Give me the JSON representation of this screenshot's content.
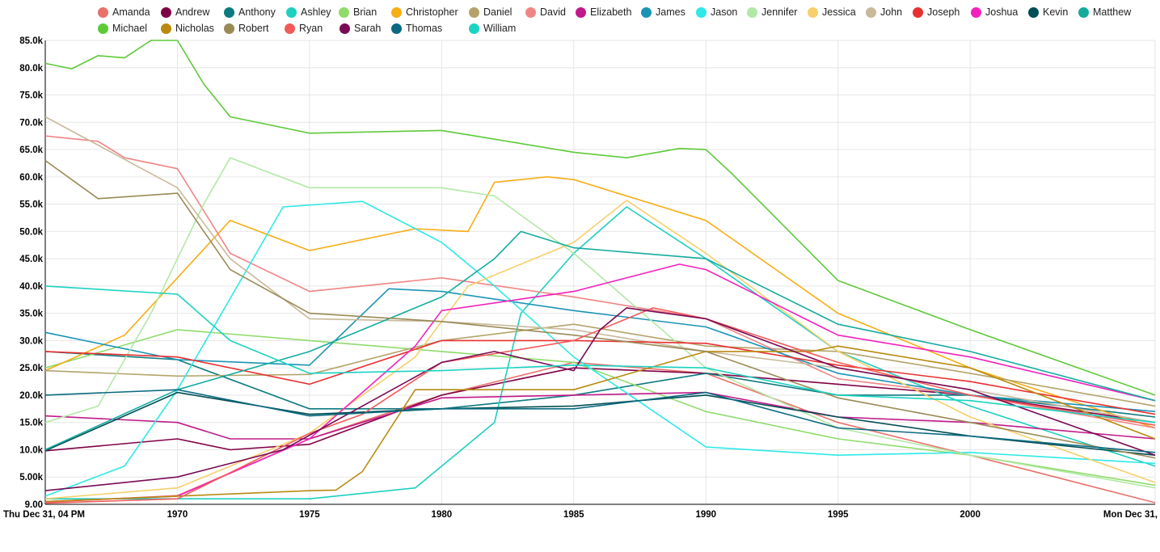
{
  "chart_data": {
    "type": "line",
    "y_tick_labels": [
      "9.00",
      "5.00k",
      "10.0k",
      "15.0k",
      "20.0k",
      "25.0k",
      "30.0k",
      "35.0k",
      "40.0k",
      "45.0k",
      "50.0k",
      "55.0k",
      "60.0k",
      "65.0k",
      "70.0k",
      "75.0k",
      "80.0k",
      "85.0k"
    ],
    "x_tick_labels": [
      "Thu Dec 31, 04 PM",
      "1970",
      "1975",
      "1980",
      "1985",
      "1990",
      "1995",
      "2000",
      "Mon Dec 31,"
    ],
    "x_tick_years": [
      1965,
      1970,
      1975,
      1980,
      1985,
      1990,
      1995,
      2000,
      2007
    ],
    "x_range": [
      1965,
      2007
    ],
    "ylim": [
      0,
      85000
    ],
    "grid": true,
    "legend_position": "top",
    "series": [
      {
        "name": "Amanda",
        "color": "#e8716b",
        "points": [
          [
            1965,
            400
          ],
          [
            1970,
            1600
          ],
          [
            1975,
            12000
          ],
          [
            1980,
            20000
          ],
          [
            1985,
            26000
          ],
          [
            1990,
            24000
          ],
          [
            1995,
            15000
          ],
          [
            2000,
            9000
          ],
          [
            2007,
            300
          ]
        ]
      },
      {
        "name": "Andrew",
        "color": "#800046",
        "points": [
          [
            1965,
            9800
          ],
          [
            1970,
            12000
          ],
          [
            1972,
            10000
          ],
          [
            1975,
            11000
          ],
          [
            1980,
            20000
          ],
          [
            1985,
            25000
          ],
          [
            1990,
            24000
          ],
          [
            1995,
            22000
          ],
          [
            2000,
            20000
          ],
          [
            2007,
            15000
          ]
        ]
      },
      {
        "name": "Anthony",
        "color": "#0d7a80",
        "points": [
          [
            1965,
            28000
          ],
          [
            1970,
            26500
          ],
          [
            1975,
            17500
          ],
          [
            1980,
            17500
          ],
          [
            1985,
            20000
          ],
          [
            1990,
            24000
          ],
          [
            1995,
            20000
          ],
          [
            2000,
            20000
          ],
          [
            2007,
            16000
          ]
        ]
      },
      {
        "name": "Ashley",
        "color": "#1fcfc0",
        "points": [
          [
            1965,
            1000
          ],
          [
            1975,
            1000
          ],
          [
            1979,
            3000
          ],
          [
            1982,
            15000
          ],
          [
            1983,
            35000
          ],
          [
            1985,
            46000
          ],
          [
            1987,
            54500
          ],
          [
            1990,
            45000
          ],
          [
            1995,
            28000
          ],
          [
            2000,
            18000
          ],
          [
            2007,
            7000
          ]
        ]
      },
      {
        "name": "Brian",
        "color": "#8fdb6b",
        "points": [
          [
            1965,
            25000
          ],
          [
            1970,
            32000
          ],
          [
            1975,
            30000
          ],
          [
            1980,
            28000
          ],
          [
            1985,
            26000
          ],
          [
            1990,
            17000
          ],
          [
            1995,
            12000
          ],
          [
            2000,
            9000
          ],
          [
            2007,
            3500
          ]
        ]
      },
      {
        "name": "Christopher",
        "color": "#f7ad14",
        "points": [
          [
            1965,
            24500
          ],
          [
            1968,
            31000
          ],
          [
            1972,
            52000
          ],
          [
            1975,
            46500
          ],
          [
            1979,
            50500
          ],
          [
            1981,
            50000
          ],
          [
            1982,
            59000
          ],
          [
            1984,
            60000
          ],
          [
            1985,
            59500
          ],
          [
            1990,
            52000
          ],
          [
            1995,
            35000
          ],
          [
            2000,
            25000
          ],
          [
            2007,
            14000
          ]
        ]
      },
      {
        "name": "Daniel",
        "color": "#b3a36a",
        "points": [
          [
            1965,
            24500
          ],
          [
            1970,
            23500
          ],
          [
            1975,
            23800
          ],
          [
            1980,
            30000
          ],
          [
            1985,
            33000
          ],
          [
            1990,
            29000
          ],
          [
            1995,
            28000
          ],
          [
            2000,
            24000
          ],
          [
            2007,
            18000
          ]
        ]
      },
      {
        "name": "David",
        "color": "#f08585",
        "points": [
          [
            1965,
            67500
          ],
          [
            1967,
            66500
          ],
          [
            1968,
            63500
          ],
          [
            1970,
            61500
          ],
          [
            1972,
            46000
          ],
          [
            1975,
            39000
          ],
          [
            1980,
            41500
          ],
          [
            1985,
            38000
          ],
          [
            1990,
            34000
          ],
          [
            1995,
            23000
          ],
          [
            2000,
            20000
          ],
          [
            2007,
            14000
          ]
        ]
      },
      {
        "name": "Elizabeth",
        "color": "#c01a8a",
        "points": [
          [
            1965,
            16200
          ],
          [
            1970,
            15000
          ],
          [
            1972,
            12000
          ],
          [
            1975,
            12000
          ],
          [
            1980,
            19500
          ],
          [
            1985,
            20000
          ],
          [
            1990,
            20500
          ],
          [
            1995,
            16000
          ],
          [
            2000,
            15000
          ],
          [
            2007,
            12000
          ]
        ]
      },
      {
        "name": "James",
        "color": "#1a94b5",
        "points": [
          [
            1965,
            31500
          ],
          [
            1970,
            26500
          ],
          [
            1975,
            25500
          ],
          [
            1978,
            39500
          ],
          [
            1980,
            39000
          ],
          [
            1985,
            35500
          ],
          [
            1990,
            32500
          ],
          [
            1995,
            24000
          ],
          [
            2000,
            20000
          ],
          [
            2007,
            17000
          ]
        ]
      },
      {
        "name": "Jason",
        "color": "#2fe8e8",
        "points": [
          [
            1965,
            1500
          ],
          [
            1968,
            7000
          ],
          [
            1970,
            21000
          ],
          [
            1974,
            54500
          ],
          [
            1977,
            55500
          ],
          [
            1980,
            48000
          ],
          [
            1982,
            40000
          ],
          [
            1985,
            27000
          ],
          [
            1990,
            10500
          ],
          [
            1995,
            9000
          ],
          [
            2000,
            9500
          ],
          [
            2007,
            7500
          ]
        ]
      },
      {
        "name": "Jennifer",
        "color": "#b2e8a6",
        "points": [
          [
            1965,
            15000
          ],
          [
            1967,
            18000
          ],
          [
            1969,
            35000
          ],
          [
            1971,
            55000
          ],
          [
            1972,
            63500
          ],
          [
            1975,
            58000
          ],
          [
            1980,
            58000
          ],
          [
            1982,
            56500
          ],
          [
            1985,
            46000
          ],
          [
            1990,
            25000
          ],
          [
            1995,
            14000
          ],
          [
            2000,
            9000
          ],
          [
            2007,
            3000
          ]
        ]
      },
      {
        "name": "Jessica",
        "color": "#f7cf6b",
        "points": [
          [
            1965,
            1000
          ],
          [
            1970,
            3000
          ],
          [
            1975,
            13000
          ],
          [
            1979,
            27000
          ],
          [
            1981,
            40000
          ],
          [
            1985,
            48000
          ],
          [
            1987,
            55700
          ],
          [
            1990,
            46000
          ],
          [
            1995,
            28000
          ],
          [
            2000,
            16000
          ],
          [
            2007,
            4000
          ]
        ]
      },
      {
        "name": "John",
        "color": "#c8b99a",
        "points": [
          [
            1965,
            71000
          ],
          [
            1970,
            58000
          ],
          [
            1972,
            45000
          ],
          [
            1975,
            34000
          ],
          [
            1980,
            33500
          ],
          [
            1985,
            32000
          ],
          [
            1990,
            28000
          ],
          [
            1995,
            25000
          ],
          [
            2000,
            21000
          ],
          [
            2007,
            15000
          ]
        ]
      },
      {
        "name": "Joseph",
        "color": "#e83030",
        "points": [
          [
            1965,
            28000
          ],
          [
            1970,
            27000
          ],
          [
            1975,
            22000
          ],
          [
            1980,
            30000
          ],
          [
            1985,
            30000
          ],
          [
            1990,
            29500
          ],
          [
            1995,
            25500
          ],
          [
            2000,
            22500
          ],
          [
            2007,
            16500
          ]
        ]
      },
      {
        "name": "Joshua",
        "color": "#f221bd",
        "points": [
          [
            1965,
            500
          ],
          [
            1970,
            1500
          ],
          [
            1975,
            12000
          ],
          [
            1979,
            29000
          ],
          [
            1980,
            35500
          ],
          [
            1985,
            39000
          ],
          [
            1989,
            44000
          ],
          [
            1990,
            43000
          ],
          [
            1995,
            31000
          ],
          [
            2000,
            27000
          ],
          [
            2007,
            19000
          ]
        ]
      },
      {
        "name": "Kevin",
        "color": "#004d53",
        "points": [
          [
            1965,
            9800
          ],
          [
            1970,
            20500
          ],
          [
            1975,
            16500
          ],
          [
            1980,
            17500
          ],
          [
            1985,
            18000
          ],
          [
            1990,
            20000
          ],
          [
            1995,
            16000
          ],
          [
            2000,
            12500
          ],
          [
            2007,
            9000
          ]
        ]
      },
      {
        "name": "Matthew",
        "color": "#14ab9e",
        "points": [
          [
            1965,
            10000
          ],
          [
            1970,
            21000
          ],
          [
            1975,
            28000
          ],
          [
            1980,
            38000
          ],
          [
            1982,
            45000
          ],
          [
            1983,
            50000
          ],
          [
            1985,
            47000
          ],
          [
            1990,
            45000
          ],
          [
            1995,
            33000
          ],
          [
            2000,
            28000
          ],
          [
            2007,
            19000
          ]
        ]
      },
      {
        "name": "Michael",
        "color": "#5ec939",
        "points": [
          [
            1965,
            80800
          ],
          [
            1966,
            79800
          ],
          [
            1967,
            82200
          ],
          [
            1968,
            81800
          ],
          [
            1969,
            85000
          ],
          [
            1970,
            85000
          ],
          [
            1971,
            77000
          ],
          [
            1972,
            71000
          ],
          [
            1975,
            68000
          ],
          [
            1980,
            68500
          ],
          [
            1985,
            64500
          ],
          [
            1987,
            63500
          ],
          [
            1989,
            65200
          ],
          [
            1990,
            65000
          ],
          [
            1991,
            60500
          ],
          [
            1995,
            41000
          ],
          [
            2000,
            32000
          ],
          [
            2007,
            20000
          ]
        ]
      },
      {
        "name": "Nicholas",
        "color": "#b88a10",
        "points": [
          [
            1965,
            500
          ],
          [
            1970,
            1500
          ],
          [
            1975,
            2500
          ],
          [
            1976,
            2600
          ],
          [
            1977,
            6000
          ],
          [
            1979,
            21000
          ],
          [
            1985,
            21000
          ],
          [
            1990,
            28000
          ],
          [
            1994,
            28000
          ],
          [
            1995,
            29000
          ],
          [
            2000,
            25000
          ],
          [
            2007,
            12000
          ]
        ]
      },
      {
        "name": "Robert",
        "color": "#9a8a55",
        "points": [
          [
            1965,
            63000
          ],
          [
            1967,
            56000
          ],
          [
            1970,
            57000
          ],
          [
            1972,
            43000
          ],
          [
            1975,
            35000
          ],
          [
            1980,
            33500
          ],
          [
            1985,
            31000
          ],
          [
            1990,
            28000
          ],
          [
            1995,
            19500
          ],
          [
            2000,
            15000
          ],
          [
            2007,
            8500
          ]
        ]
      },
      {
        "name": "Ryan",
        "color": "#f25a5a",
        "points": [
          [
            1965,
            200
          ],
          [
            1970,
            1000
          ],
          [
            1975,
            13000
          ],
          [
            1977,
            16500
          ],
          [
            1980,
            26000
          ],
          [
            1985,
            30000
          ],
          [
            1988,
            36000
          ],
          [
            1990,
            34000
          ],
          [
            1995,
            26000
          ],
          [
            2000,
            20000
          ],
          [
            2007,
            14500
          ]
        ]
      },
      {
        "name": "Sarah",
        "color": "#7a0a55",
        "points": [
          [
            1965,
            2500
          ],
          [
            1970,
            5000
          ],
          [
            1974,
            10000
          ],
          [
            1980,
            26000
          ],
          [
            1982,
            28000
          ],
          [
            1985,
            24500
          ],
          [
            1986,
            32000
          ],
          [
            1987,
            36000
          ],
          [
            1990,
            34000
          ],
          [
            1995,
            25000
          ],
          [
            2000,
            21000
          ],
          [
            2007,
            9000
          ]
        ]
      },
      {
        "name": "Thomas",
        "color": "#0a6a80",
        "points": [
          [
            1965,
            20000
          ],
          [
            1970,
            21000
          ],
          [
            1975,
            16200
          ],
          [
            1980,
            17500
          ],
          [
            1985,
            17500
          ],
          [
            1990,
            20500
          ],
          [
            1995,
            14000
          ],
          [
            2000,
            12500
          ],
          [
            2007,
            9500
          ]
        ]
      },
      {
        "name": "William",
        "color": "#1ad3c2",
        "points": [
          [
            1965,
            40000
          ],
          [
            1970,
            38500
          ],
          [
            1972,
            30000
          ],
          [
            1975,
            24000
          ],
          [
            1980,
            24500
          ],
          [
            1985,
            25500
          ],
          [
            1990,
            25000
          ],
          [
            1995,
            20000
          ],
          [
            2000,
            19000
          ],
          [
            2007,
            15000
          ]
        ]
      }
    ]
  }
}
